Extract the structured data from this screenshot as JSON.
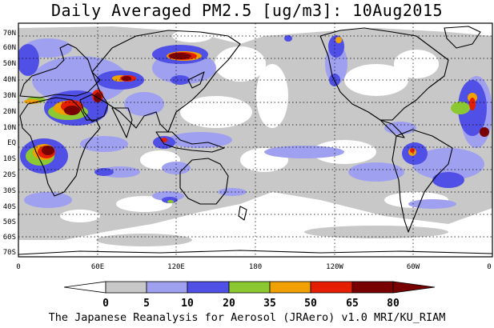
{
  "title": "Daily Averaged PM2.5 [ug/m3]: 10Aug2015",
  "credit": "The Japanese Reanalysis for Aerosol (JRAero) v1.0 MRI/KU_RIAM",
  "map": {
    "lat_labels": [
      "70N",
      "60N",
      "50N",
      "40N",
      "30N",
      "20N",
      "10N",
      "EQ",
      "10S",
      "20S",
      "30S",
      "40S",
      "50S",
      "60S",
      "70S"
    ],
    "lon_labels": [
      "0",
      "60E",
      "120E",
      "180",
      "120W",
      "60W",
      "0"
    ]
  },
  "legend": {
    "levels": [
      "0",
      "5",
      "10",
      "20",
      "35",
      "50",
      "65",
      "80"
    ],
    "colors": [
      "#ffffff",
      "#c8c8c8",
      "#a0a0f0",
      "#5050e6",
      "#8cc832",
      "#f0a000",
      "#e61e00",
      "#780000"
    ]
  },
  "colors": {
    "gray": "#c8c8c8",
    "light_blue": "#a0a0f0",
    "blue": "#5050e6",
    "green": "#8cc832",
    "orange": "#f0a000",
    "red": "#e61e00",
    "dark_red": "#780000",
    "coast": "#000000"
  }
}
